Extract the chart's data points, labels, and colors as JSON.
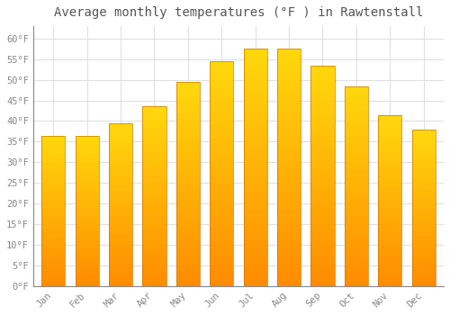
{
  "title": "Average monthly temperatures (°F ) in Rawtenstall",
  "months": [
    "Jan",
    "Feb",
    "Mar",
    "Apr",
    "May",
    "Jun",
    "Jul",
    "Aug",
    "Sep",
    "Oct",
    "Nov",
    "Dec"
  ],
  "values": [
    36.5,
    36.5,
    39.5,
    43.5,
    49.5,
    54.5,
    57.5,
    57.5,
    53.5,
    48.5,
    41.5,
    38.0
  ],
  "bar_color_top": "#FFAA00",
  "bar_color_bottom": "#FF8C00",
  "bar_color_edge": "#CC7700",
  "ylim": [
    0,
    63
  ],
  "yticks": [
    0,
    5,
    10,
    15,
    20,
    25,
    30,
    35,
    40,
    45,
    50,
    55,
    60
  ],
  "background_color": "#FFFFFF",
  "grid_color": "#E0E0E0",
  "title_fontsize": 10,
  "tick_fontsize": 7.5,
  "title_font": "monospace",
  "tick_font": "monospace"
}
